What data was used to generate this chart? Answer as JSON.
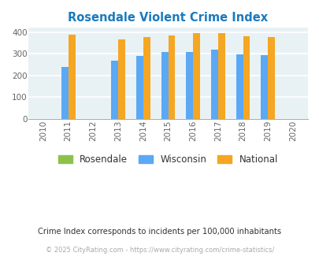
{
  "title": "Rosendale Violent Crime Index",
  "title_color": "#1a7abf",
  "years": [
    2010,
    2011,
    2012,
    2013,
    2014,
    2015,
    2016,
    2017,
    2018,
    2019,
    2020
  ],
  "rosendale": [
    0,
    0,
    0,
    0,
    0,
    0,
    0,
    0,
    0,
    0,
    0
  ],
  "wisconsin": [
    0,
    238,
    0,
    270,
    292,
    307,
    307,
    320,
    296,
    294,
    0
  ],
  "national": [
    0,
    387,
    0,
    368,
    376,
    384,
    397,
    394,
    381,
    379,
    0
  ],
  "bar_width": 0.28,
  "ylim": [
    0,
    420
  ],
  "yticks": [
    0,
    100,
    200,
    300,
    400
  ],
  "color_rosendale": "#8bc34a",
  "color_wisconsin": "#5ba8f5",
  "color_national": "#f5a623",
  "bg_color": "#e8f2f5",
  "grid_color": "#ffffff",
  "footnote1": "Crime Index corresponds to incidents per 100,000 inhabitants",
  "footnote2": "© 2025 CityRating.com - https://www.cityrating.com/crime-statistics/",
  "legend_labels": [
    "Rosendale",
    "Wisconsin",
    "National"
  ],
  "xlim": [
    2009.4,
    2020.6
  ]
}
